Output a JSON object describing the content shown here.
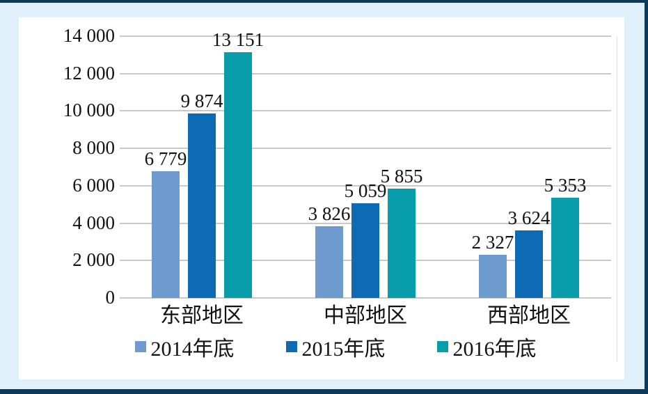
{
  "colors": {
    "background": "#dff0fb",
    "frame_border": "#0e3a5a",
    "panel": "#ffffff",
    "gridline": "#c9c9c9",
    "text": "#111111"
  },
  "chart_data": {
    "type": "bar",
    "title": "",
    "xlabel": "",
    "ylabel": "",
    "categories": [
      "东部地区",
      "中部地区",
      "西部地区"
    ],
    "series": [
      {
        "name": "2014年底",
        "color": "#6d9bcd",
        "values": [
          6779,
          3826,
          2327
        ],
        "labels": [
          "6 779",
          "3 826",
          "2 327"
        ]
      },
      {
        "name": "2015年底",
        "color": "#0f6ab4",
        "values": [
          9874,
          5059,
          3624
        ],
        "labels": [
          "9 874",
          "5 059",
          "3 624"
        ]
      },
      {
        "name": "2016年底",
        "color": "#089dab",
        "values": [
          13151,
          5855,
          5353
        ],
        "labels": [
          "13 151",
          "5 855",
          "5 353"
        ]
      }
    ],
    "y_axis": {
      "min": 0,
      "max": 14000,
      "step": 2000,
      "tick_labels": [
        "0",
        "2 000",
        "4 000",
        "6 000",
        "8 000",
        "10 000",
        "12 000",
        "14 000"
      ]
    },
    "grid": true,
    "legend_position": "bottom"
  }
}
